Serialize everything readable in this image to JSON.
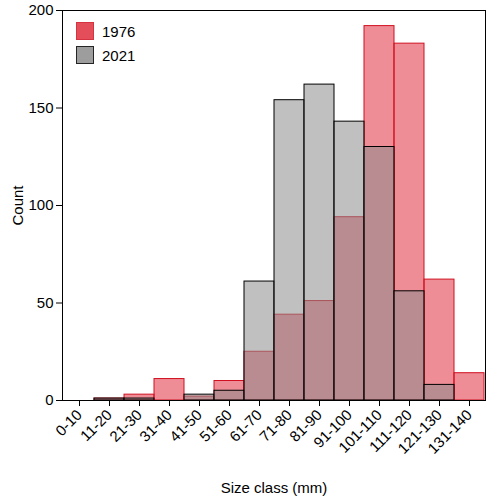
{
  "chart_data": {
    "type": "bar",
    "x_label": "Size class (mm)",
    "y_label": "Count",
    "categories": [
      "0-10",
      "11-20",
      "21-30",
      "31-40",
      "41-50",
      "51-60",
      "61-70",
      "71-80",
      "81-90",
      "91-100",
      "101-110",
      "111-120",
      "121-130",
      "131-140"
    ],
    "series": [
      {
        "name": "1976",
        "color": "#e0303f",
        "values": [
          0,
          1,
          3,
          11,
          2,
          10,
          25,
          44,
          51,
          94,
          192,
          183,
          62,
          14
        ]
      },
      {
        "name": "2021",
        "color": "#8c8c8c",
        "values": [
          0,
          1,
          1,
          0,
          3,
          5,
          61,
          154,
          162,
          143,
          130,
          56,
          8,
          0
        ]
      }
    ],
    "ylim": [
      0,
      200
    ],
    "yticks": [
      0,
      50,
      100,
      150,
      200
    ],
    "legend": "top-left",
    "grid": false
  }
}
